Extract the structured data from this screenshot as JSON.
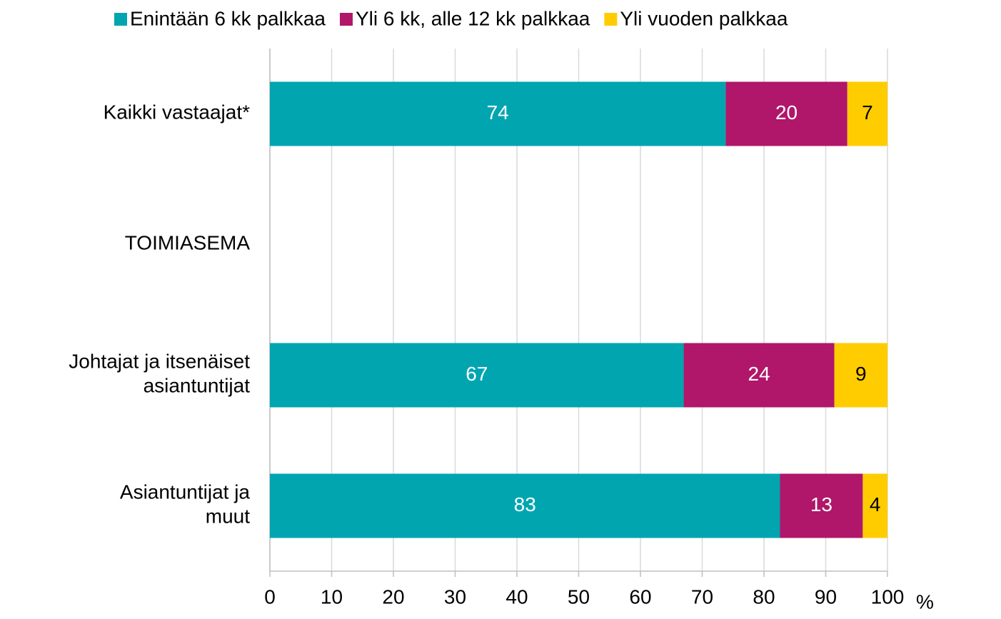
{
  "chart_data": {
    "type": "stacked_barh",
    "categories": [
      "Kaikki vastaajat*",
      "TOIMIASEMA",
      "Johtajat ja itsenäiset\nasiantuntijat",
      "Asiantuntijat ja\nmuut"
    ],
    "series": [
      {
        "name": "Enintään 6 kk palkkaa",
        "color": "#00a5b0",
        "label_color": "#ffffff",
        "values": [
          73.8,
          null,
          67,
          82.6
        ],
        "value_labels": [
          "74",
          null,
          "67",
          "83"
        ]
      },
      {
        "name": "Yli 6 kk, alle 12 kk palkkaa",
        "color": "#b0166a",
        "label_color": "#ffffff",
        "values": [
          19.7,
          null,
          24.4,
          13.4
        ],
        "value_labels": [
          "20",
          null,
          "24",
          "13"
        ]
      },
      {
        "name": "Yli vuoden palkkaa",
        "color": "#ffcc00",
        "label_color": "#000000",
        "values": [
          6.5,
          null,
          8.6,
          4.0
        ],
        "value_labels": [
          "7",
          null,
          "9",
          "4"
        ]
      }
    ],
    "xlim": [
      0,
      100
    ],
    "xticks": [
      0,
      10,
      20,
      30,
      40,
      50,
      60,
      70,
      80,
      90,
      100
    ],
    "xlabel": "%",
    "grid": true,
    "legend": "top"
  }
}
